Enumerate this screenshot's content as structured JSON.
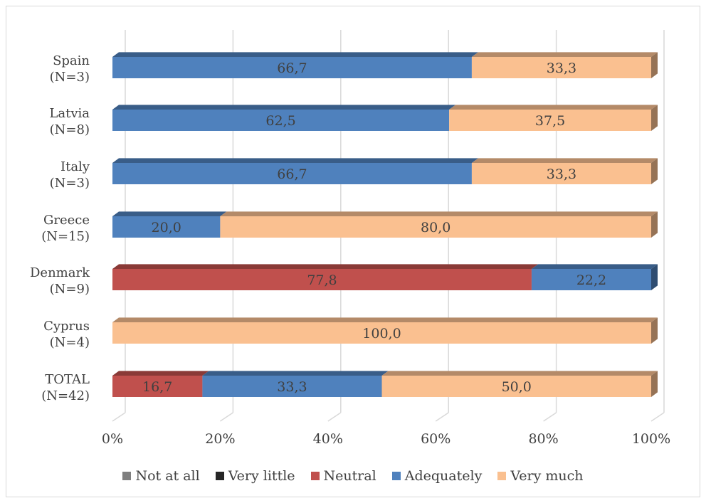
{
  "chart_data": {
    "type": "bar",
    "orientation": "horizontal",
    "stacked": "percent",
    "style": "3d",
    "categories": [
      [
        "Spain",
        "(N=3)"
      ],
      [
        "Latvia",
        "(N=8)"
      ],
      [
        "Italy",
        "(N=3)"
      ],
      [
        "Greece",
        "(N=15)"
      ],
      [
        "Denmark",
        "(N=9)"
      ],
      [
        "Cyprus",
        "(N=4)"
      ],
      [
        "TOTAL",
        "(N=42)"
      ]
    ],
    "series": [
      {
        "name": "Not at all",
        "color": "#7f7f7f",
        "values": [
          0,
          0,
          0,
          0,
          0,
          0,
          0
        ]
      },
      {
        "name": "Very little",
        "color": "#262626",
        "values": [
          0,
          0,
          0,
          0,
          0,
          0,
          0
        ]
      },
      {
        "name": "Neutral",
        "color": "#c0504d",
        "values": [
          0,
          0,
          0,
          0,
          77.8,
          0,
          16.7
        ]
      },
      {
        "name": "Adequately",
        "color": "#4f81bd",
        "values": [
          66.7,
          62.5,
          66.7,
          20.0,
          22.2,
          0,
          33.3
        ]
      },
      {
        "name": "Very much",
        "color": "#fac090",
        "values": [
          33.3,
          37.5,
          33.3,
          80.0,
          0,
          100.0,
          50.0
        ]
      }
    ],
    "data_labels": [
      [
        "66,7",
        "33,3"
      ],
      [
        "62,5",
        "37,5"
      ],
      [
        "66,7",
        "33,3"
      ],
      [
        "20,0",
        "80,0"
      ],
      [
        "77,8",
        "22,2"
      ],
      [
        "100,0"
      ],
      [
        "16,7",
        "33,3",
        "50,0"
      ]
    ],
    "x_ticks": [
      "0%",
      "20%",
      "40%",
      "60%",
      "80%",
      "100%"
    ],
    "xlim": [
      0,
      100
    ],
    "grid": true,
    "legend_position": "bottom"
  }
}
